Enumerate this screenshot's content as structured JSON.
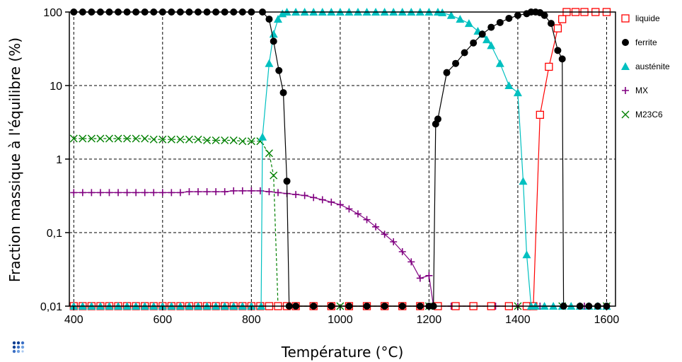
{
  "chart_data": {
    "type": "line",
    "xlabel": "Température (°C)",
    "ylabel": "Fraction massique à l'équilibre (%)",
    "xlim": [
      390,
      1620
    ],
    "ylim": [
      0.01,
      100
    ],
    "y_scale": "log",
    "grid": true,
    "legend_position": "right",
    "x_ticks": [
      {
        "value": 400,
        "label": "400"
      },
      {
        "value": 600,
        "label": "600"
      },
      {
        "value": 800,
        "label": "800"
      },
      {
        "value": 1000,
        "label": "1000"
      },
      {
        "value": 1200,
        "label": "1200"
      },
      {
        "value": 1400,
        "label": "1400"
      },
      {
        "value": 1600,
        "label": "1600"
      }
    ],
    "y_ticks": [
      {
        "value": 100,
        "label": "100"
      },
      {
        "value": 10,
        "label": "10"
      },
      {
        "value": 1,
        "label": "1"
      },
      {
        "value": 0.1,
        "label": "0,1"
      },
      {
        "value": 0.01,
        "label": "0,01"
      }
    ],
    "series": [
      {
        "name": "liquide",
        "color": "#ff0000",
        "marker": "square-open",
        "points": [
          [
            400,
            0.01
          ],
          [
            420,
            0.01
          ],
          [
            440,
            0.01
          ],
          [
            460,
            0.01
          ],
          [
            480,
            0.01
          ],
          [
            500,
            0.01
          ],
          [
            520,
            0.01
          ],
          [
            540,
            0.01
          ],
          [
            560,
            0.01
          ],
          [
            580,
            0.01
          ],
          [
            600,
            0.01
          ],
          [
            620,
            0.01
          ],
          [
            640,
            0.01
          ],
          [
            660,
            0.01
          ],
          [
            680,
            0.01
          ],
          [
            700,
            0.01
          ],
          [
            720,
            0.01
          ],
          [
            740,
            0.01
          ],
          [
            760,
            0.01
          ],
          [
            780,
            0.01
          ],
          [
            800,
            0.01
          ],
          [
            820,
            0.01
          ],
          [
            840,
            0.01
          ],
          [
            860,
            0.01
          ],
          [
            880,
            0.01
          ],
          [
            900,
            0.01
          ],
          [
            940,
            0.01
          ],
          [
            980,
            0.01
          ],
          [
            1020,
            0.01
          ],
          [
            1060,
            0.01
          ],
          [
            1100,
            0.01
          ],
          [
            1140,
            0.01
          ],
          [
            1180,
            0.01
          ],
          [
            1220,
            0.01
          ],
          [
            1260,
            0.01
          ],
          [
            1300,
            0.01
          ],
          [
            1340,
            0.01
          ],
          [
            1380,
            0.01
          ],
          [
            1420,
            0.01
          ],
          [
            1435,
            0.01
          ],
          [
            1450,
            4
          ],
          [
            1470,
            18
          ],
          [
            1490,
            60
          ],
          [
            1500,
            80
          ],
          [
            1510,
            100
          ],
          [
            1530,
            100
          ],
          [
            1550,
            100
          ],
          [
            1575,
            100
          ],
          [
            1600,
            100
          ]
        ]
      },
      {
        "name": "ferrite",
        "color": "#000000",
        "marker": "circle-filled",
        "points": [
          [
            400,
            100
          ],
          [
            420,
            100
          ],
          [
            440,
            100
          ],
          [
            460,
            100
          ],
          [
            480,
            100
          ],
          [
            500,
            100
          ],
          [
            520,
            100
          ],
          [
            540,
            100
          ],
          [
            560,
            100
          ],
          [
            580,
            100
          ],
          [
            600,
            100
          ],
          [
            620,
            100
          ],
          [
            640,
            100
          ],
          [
            660,
            100
          ],
          [
            680,
            100
          ],
          [
            700,
            100
          ],
          [
            720,
            100
          ],
          [
            740,
            100
          ],
          [
            760,
            100
          ],
          [
            780,
            100
          ],
          [
            800,
            100
          ],
          [
            825,
            100
          ],
          [
            840,
            80
          ],
          [
            850,
            40
          ],
          [
            862,
            16
          ],
          [
            872,
            8
          ],
          [
            880,
            0.5
          ],
          [
            885,
            0.01
          ],
          [
            900,
            0.01
          ],
          [
            940,
            0.01
          ],
          [
            980,
            0.01
          ],
          [
            1020,
            0.01
          ],
          [
            1060,
            0.01
          ],
          [
            1100,
            0.01
          ],
          [
            1140,
            0.01
          ],
          [
            1180,
            0.01
          ],
          [
            1200,
            0.01
          ],
          [
            1210,
            0.01
          ],
          [
            1215,
            3
          ],
          [
            1220,
            3.5
          ],
          [
            1240,
            15
          ],
          [
            1260,
            20
          ],
          [
            1280,
            28
          ],
          [
            1300,
            38
          ],
          [
            1320,
            50
          ],
          [
            1340,
            62
          ],
          [
            1360,
            72
          ],
          [
            1380,
            82
          ],
          [
            1400,
            90
          ],
          [
            1420,
            95
          ],
          [
            1430,
            100
          ],
          [
            1440,
            100
          ],
          [
            1450,
            98
          ],
          [
            1460,
            90
          ],
          [
            1475,
            70
          ],
          [
            1490,
            30
          ],
          [
            1500,
            23
          ],
          [
            1503,
            0.01
          ],
          [
            1540,
            0.01
          ],
          [
            1560,
            0.01
          ],
          [
            1580,
            0.01
          ],
          [
            1600,
            0.01
          ]
        ]
      },
      {
        "name": "austénite",
        "color": "#00c0c0",
        "marker": "triangle-filled",
        "points": [
          [
            400,
            0.01
          ],
          [
            420,
            0.01
          ],
          [
            440,
            0.01
          ],
          [
            460,
            0.01
          ],
          [
            480,
            0.01
          ],
          [
            500,
            0.01
          ],
          [
            520,
            0.01
          ],
          [
            540,
            0.01
          ],
          [
            560,
            0.01
          ],
          [
            580,
            0.01
          ],
          [
            600,
            0.01
          ],
          [
            620,
            0.01
          ],
          [
            640,
            0.01
          ],
          [
            660,
            0.01
          ],
          [
            680,
            0.01
          ],
          [
            700,
            0.01
          ],
          [
            720,
            0.01
          ],
          [
            740,
            0.01
          ],
          [
            760,
            0.01
          ],
          [
            780,
            0.01
          ],
          [
            800,
            0.01
          ],
          [
            822,
            0.01
          ],
          [
            825,
            2
          ],
          [
            840,
            20
          ],
          [
            850,
            50
          ],
          [
            860,
            80
          ],
          [
            870,
            95
          ],
          [
            880,
            100
          ],
          [
            900,
            100
          ],
          [
            920,
            100
          ],
          [
            940,
            100
          ],
          [
            960,
            100
          ],
          [
            980,
            100
          ],
          [
            1000,
            100
          ],
          [
            1020,
            100
          ],
          [
            1040,
            100
          ],
          [
            1060,
            100
          ],
          [
            1080,
            100
          ],
          [
            1100,
            100
          ],
          [
            1120,
            100
          ],
          [
            1140,
            100
          ],
          [
            1160,
            100
          ],
          [
            1180,
            100
          ],
          [
            1200,
            100
          ],
          [
            1220,
            100
          ],
          [
            1230,
            98
          ],
          [
            1250,
            90
          ],
          [
            1270,
            80
          ],
          [
            1290,
            70
          ],
          [
            1310,
            55
          ],
          [
            1320,
            50
          ],
          [
            1330,
            42
          ],
          [
            1340,
            35
          ],
          [
            1360,
            20
          ],
          [
            1380,
            10
          ],
          [
            1400,
            8
          ],
          [
            1412,
            0.5
          ],
          [
            1420,
            0.05
          ],
          [
            1430,
            0.01
          ],
          [
            1440,
            0.01
          ],
          [
            1460,
            0.01
          ],
          [
            1480,
            0.01
          ],
          [
            1500,
            0.01
          ],
          [
            1520,
            0.01
          ],
          [
            1540,
            0.01
          ],
          [
            1560,
            0.01
          ],
          [
            1580,
            0.01
          ],
          [
            1600,
            0.01
          ]
        ]
      },
      {
        "name": "MX",
        "color": "#800080",
        "marker": "plus",
        "points": [
          [
            400,
            0.35
          ],
          [
            420,
            0.35
          ],
          [
            440,
            0.35
          ],
          [
            460,
            0.35
          ],
          [
            480,
            0.35
          ],
          [
            500,
            0.35
          ],
          [
            520,
            0.35
          ],
          [
            540,
            0.35
          ],
          [
            560,
            0.35
          ],
          [
            580,
            0.35
          ],
          [
            600,
            0.35
          ],
          [
            620,
            0.35
          ],
          [
            640,
            0.35
          ],
          [
            660,
            0.36
          ],
          [
            680,
            0.36
          ],
          [
            700,
            0.36
          ],
          [
            720,
            0.36
          ],
          [
            740,
            0.36
          ],
          [
            760,
            0.37
          ],
          [
            780,
            0.37
          ],
          [
            800,
            0.37
          ],
          [
            820,
            0.37
          ],
          [
            840,
            0.36
          ],
          [
            860,
            0.35
          ],
          [
            880,
            0.34
          ],
          [
            900,
            0.33
          ],
          [
            920,
            0.32
          ],
          [
            940,
            0.3
          ],
          [
            960,
            0.28
          ],
          [
            980,
            0.26
          ],
          [
            1000,
            0.24
          ],
          [
            1020,
            0.21
          ],
          [
            1040,
            0.18
          ],
          [
            1060,
            0.15
          ],
          [
            1080,
            0.12
          ],
          [
            1100,
            0.095
          ],
          [
            1120,
            0.075
          ],
          [
            1140,
            0.055
          ],
          [
            1160,
            0.04
          ],
          [
            1180,
            0.024
          ],
          [
            1200,
            0.026
          ],
          [
            1210,
            0.01
          ],
          [
            1220,
            0.01
          ],
          [
            1250,
            0.01
          ],
          [
            1300,
            0.01
          ],
          [
            1350,
            0.01
          ],
          [
            1400,
            0.01
          ],
          [
            1450,
            0.01
          ],
          [
            1500,
            0.01
          ],
          [
            1550,
            0.01
          ],
          [
            1600,
            0.01
          ]
        ]
      },
      {
        "name": "M23C6",
        "color": "#008000",
        "marker": "cross",
        "points": [
          [
            400,
            1.9
          ],
          [
            420,
            1.9
          ],
          [
            440,
            1.9
          ],
          [
            460,
            1.9
          ],
          [
            480,
            1.9
          ],
          [
            500,
            1.9
          ],
          [
            520,
            1.9
          ],
          [
            540,
            1.9
          ],
          [
            560,
            1.9
          ],
          [
            580,
            1.85
          ],
          [
            600,
            1.85
          ],
          [
            620,
            1.85
          ],
          [
            640,
            1.85
          ],
          [
            660,
            1.85
          ],
          [
            680,
            1.85
          ],
          [
            700,
            1.8
          ],
          [
            720,
            1.8
          ],
          [
            740,
            1.8
          ],
          [
            760,
            1.8
          ],
          [
            780,
            1.75
          ],
          [
            800,
            1.75
          ],
          [
            820,
            1.75
          ],
          [
            840,
            1.2
          ],
          [
            850,
            0.6
          ],
          [
            860,
            0.01
          ],
          [
            900,
            0.01
          ],
          [
            1000,
            0.01
          ],
          [
            1100,
            0.01
          ],
          [
            1200,
            0.01
          ],
          [
            1300,
            0.01
          ],
          [
            1400,
            0.01
          ],
          [
            1500,
            0.01
          ],
          [
            1600,
            0.01
          ]
        ]
      }
    ]
  }
}
